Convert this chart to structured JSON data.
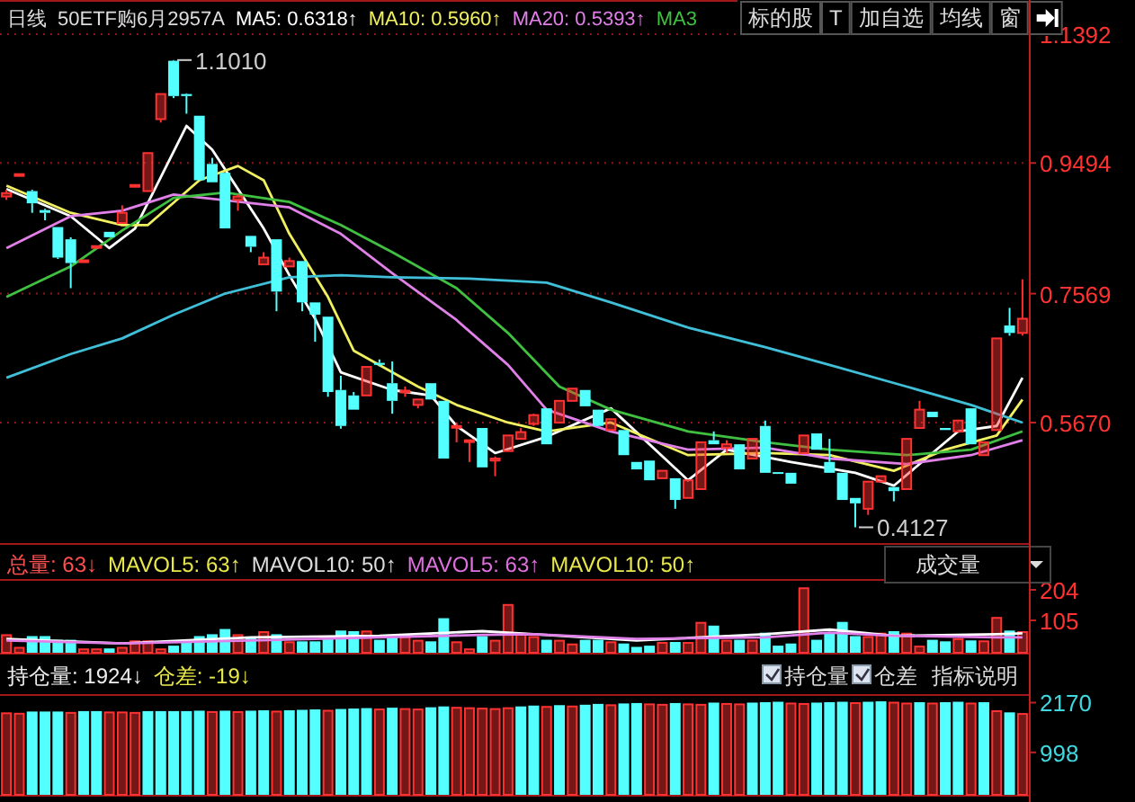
{
  "chart_data": [
    {
      "type": "candlestick",
      "tick_labels": "y",
      "grid": "y",
      "ylim": [
        0.3895,
        1.1895
      ],
      "yticks": [
        {
          "value": 0.567,
          "label": "0.5670"
        },
        {
          "value": 0.7569,
          "label": "0.7569"
        },
        {
          "value": 0.9494,
          "label": "0.9494"
        },
        {
          "value": 1.1392,
          "label": "1.1392"
        }
      ],
      "categories": [
        null,
        null,
        null,
        null,
        null,
        null,
        null,
        null,
        null,
        null,
        null,
        null,
        null,
        null,
        null,
        null,
        null,
        null,
        null,
        null,
        null,
        null,
        null,
        null,
        null,
        null,
        null,
        null,
        null,
        null,
        null,
        null,
        null,
        null,
        null,
        null,
        null,
        null,
        null,
        null,
        null,
        null,
        null,
        null,
        null,
        null,
        null,
        null,
        null,
        null,
        null,
        null,
        null,
        null,
        null,
        null,
        null,
        null,
        null,
        null,
        null,
        null,
        null,
        null,
        null,
        null,
        null,
        null,
        null,
        null,
        null,
        null,
        null,
        null,
        null,
        null,
        null,
        null,
        null,
        null
      ],
      "ohlc": [
        [
          0.9,
          0.91,
          0.895,
          0.905
        ],
        [
          0.931,
          0.933,
          0.931,
          0.933
        ],
        [
          0.908,
          0.91,
          0.876,
          0.89
        ],
        [
          0.88,
          0.882,
          0.865,
          0.876
        ],
        [
          0.855,
          0.855,
          0.808,
          0.81
        ],
        [
          0.837,
          0.84,
          0.765,
          0.802
        ],
        [
          0.804,
          0.806,
          0.804,
          0.806
        ],
        [
          0.825,
          0.827,
          0.825,
          0.827
        ],
        [
          0.848,
          0.848,
          0.84,
          0.84
        ],
        [
          0.861,
          0.887,
          0.86,
          0.876
        ],
        [
          0.915,
          0.917,
          0.915,
          0.917
        ],
        [
          0.908,
          0.964,
          0.908,
          0.964
        ],
        [
          1.014,
          1.051,
          1.009,
          1.051
        ],
        [
          1.1,
          1.101,
          1.045,
          1.048
        ],
        [
          1.051,
          1.052,
          1.022,
          1.048
        ],
        [
          1.019,
          1.019,
          0.924,
          0.924
        ],
        [
          0.948,
          0.957,
          0.921,
          0.921
        ],
        [
          0.935,
          0.935,
          0.853,
          0.853
        ],
        [
          0.895,
          0.903,
          0.879,
          0.9
        ],
        [
          0.842,
          0.842,
          0.818,
          0.826
        ],
        [
          0.8,
          0.818,
          0.8,
          0.81
        ],
        [
          0.837,
          0.837,
          0.731,
          0.76
        ],
        [
          0.797,
          0.81,
          0.797,
          0.805
        ],
        [
          0.805,
          0.805,
          0.731,
          0.744
        ],
        [
          0.744,
          0.744,
          0.686,
          0.726
        ],
        [
          0.723,
          0.723,
          0.605,
          0.612
        ],
        [
          0.615,
          0.636,
          0.558,
          0.562
        ],
        [
          0.607,
          0.612,
          0.586,
          0.586
        ],
        [
          0.607,
          0.649,
          0.607,
          0.649
        ],
        [
          0.655,
          0.66,
          0.65,
          0.652
        ],
        [
          0.625,
          0.657,
          0.58,
          0.599
        ],
        [
          0.613,
          0.62,
          0.605,
          0.614
        ],
        [
          0.593,
          0.601,
          0.588,
          0.601
        ],
        [
          0.625,
          0.625,
          0.601,
          0.601
        ],
        [
          0.599,
          0.599,
          0.514,
          0.514
        ],
        [
          0.561,
          0.567,
          0.538,
          0.562
        ],
        [
          0.54,
          0.541,
          0.509,
          0.541
        ],
        [
          0.559,
          0.559,
          0.501,
          0.501
        ],
        [
          0.511,
          0.517,
          0.488,
          0.514
        ],
        [
          0.525,
          0.548,
          0.525,
          0.548
        ],
        [
          0.543,
          0.559,
          0.543,
          0.553
        ],
        [
          0.565,
          0.58,
          0.562,
          0.578
        ],
        [
          0.588,
          0.588,
          0.535,
          0.535
        ],
        [
          0.567,
          0.599,
          0.567,
          0.599
        ],
        [
          0.599,
          0.617,
          0.599,
          0.617
        ],
        [
          0.615,
          0.615,
          0.591,
          0.591
        ],
        [
          0.586,
          0.586,
          0.562,
          0.562
        ],
        [
          0.556,
          0.572,
          0.556,
          0.572
        ],
        [
          0.556,
          0.556,
          0.519,
          0.519
        ],
        [
          0.509,
          0.509,
          0.498,
          0.498
        ],
        [
          0.511,
          0.511,
          0.482,
          0.482
        ],
        [
          0.485,
          0.496,
          0.485,
          0.496
        ],
        [
          0.485,
          0.485,
          0.44,
          0.453
        ],
        [
          0.456,
          0.482,
          0.456,
          0.482
        ],
        [
          0.469,
          0.538,
          0.469,
          0.538
        ],
        [
          0.541,
          0.554,
          0.535,
          0.535
        ],
        [
          0.53,
          0.541,
          0.522,
          0.535
        ],
        [
          0.535,
          0.535,
          0.498,
          0.498
        ],
        [
          0.514,
          0.543,
          0.514,
          0.543
        ],
        [
          0.562,
          0.57,
          0.493,
          0.493
        ],
        [
          0.494,
          0.494,
          0.493,
          0.493
        ],
        [
          0.493,
          0.493,
          0.477,
          0.477
        ],
        [
          0.522,
          0.548,
          0.522,
          0.548
        ],
        [
          0.551,
          0.551,
          0.527,
          0.527
        ],
        [
          0.509,
          0.543,
          0.493,
          0.493
        ],
        [
          0.493,
          0.493,
          0.453,
          0.453
        ],
        [
          0.456,
          0.456,
          0.4127,
          0.448
        ],
        [
          0.44,
          0.48,
          0.431,
          0.48
        ],
        [
          0.48,
          0.488,
          0.48,
          0.488
        ],
        [
          0.472,
          0.472,
          0.451,
          0.466
        ],
        [
          0.469,
          0.543,
          0.469,
          0.543
        ],
        [
          0.559,
          0.599,
          0.559,
          0.586
        ],
        [
          0.583,
          0.583,
          0.575,
          0.575
        ],
        [
          0.559,
          0.559,
          0.556,
          0.556
        ],
        [
          0.554,
          0.57,
          0.554,
          0.57
        ],
        [
          0.588,
          0.588,
          0.535,
          0.535
        ],
        [
          0.519,
          0.538,
          0.519,
          0.538
        ],
        [
          0.556,
          0.691,
          0.556,
          0.691
        ],
        [
          0.71,
          0.736,
          0.695,
          0.699
        ],
        [
          0.699,
          0.778,
          0.695,
          0.72
        ]
      ],
      "colors": [
        "#ff3232",
        "#ff3232",
        "#54ffff",
        "#54ffff",
        "#54ffff",
        "#54ffff",
        "#ff3232",
        "#ff3232",
        "#54ffff",
        "#ff3232",
        "#ff3232",
        "#ff3232",
        "#ff3232",
        "#54ffff",
        "#54ffff",
        "#54ffff",
        "#54ffff",
        "#54ffff",
        "#ff3232",
        "#54ffff",
        "#ff3232",
        "#54ffff",
        "#ff3232",
        "#54ffff",
        "#54ffff",
        "#54ffff",
        "#54ffff",
        "#54ffff",
        "#ff3232",
        "#54ffff",
        "#54ffff",
        "#ff3232",
        "#ff3232",
        "#54ffff",
        "#54ffff",
        "#ff3232",
        "#ff3232",
        "#54ffff",
        "#ff3232",
        "#ff3232",
        "#ff3232",
        "#ff3232",
        "#54ffff",
        "#ff3232",
        "#ff3232",
        "#54ffff",
        "#54ffff",
        "#ff3232",
        "#54ffff",
        "#54ffff",
        "#54ffff",
        "#ff3232",
        "#54ffff",
        "#ff3232",
        "#ff3232",
        "#54ffff",
        "#ff3232",
        "#54ffff",
        "#ff3232",
        "#54ffff",
        "#54ffff",
        "#54ffff",
        "#ff3232",
        "#54ffff",
        "#54ffff",
        "#54ffff",
        "#54ffff",
        "#ff3232",
        "#ff3232",
        "#54ffff",
        "#ff3232",
        "#ff3232",
        "#54ffff",
        "#54ffff",
        "#ff3232",
        "#54ffff",
        "#ff3232",
        "#ff3232",
        "#54ffff",
        "#ff3232"
      ],
      "series": [
        {
          "type": "line",
          "name": "MA5: 0.6318↑",
          "color": "#ffffff",
          "values": [
            0.911,
            null,
            null,
            null,
            null,
            0.871,
            null,
            null,
            0.824,
            null,
            0.853,
            null,
            null,
            null,
            1.004,
            null,
            0.969,
            null,
            null,
            null,
            0.853,
            null,
            0.784,
            null,
            0.72,
            null,
            0.641,
            null,
            null,
            null,
            0.615,
            null,
            null,
            0.607,
            null,
            0.562,
            null,
            null,
            0.522,
            null,
            null,
            null,
            0.546,
            null,
            null,
            null,
            null,
            0.588,
            null,
            null,
            null,
            null,
            null,
            0.482,
            null,
            null,
            0.527,
            null,
            null,
            null,
            null,
            0.509,
            null,
            null,
            null,
            null,
            0.493,
            null,
            null,
            0.474,
            null,
            null,
            null,
            null,
            0.554,
            null,
            null,
            0.562,
            null,
            0.633
          ]
        },
        {
          "type": "line",
          "name": "MA10: 0.5960↑",
          "color": "#f0f060",
          "values": [
            0.916,
            null,
            null,
            null,
            null,
            0.876,
            null,
            null,
            null,
            0.858,
            null,
            0.858,
            null,
            null,
            null,
            0.924,
            null,
            null,
            0.945,
            null,
            0.924,
            null,
            0.845,
            null,
            null,
            0.752,
            null,
            0.673,
            null,
            null,
            null,
            null,
            0.62,
            null,
            null,
            0.593,
            null,
            null,
            null,
            0.567,
            null,
            null,
            0.554,
            null,
            null,
            null,
            null,
            0.567,
            null,
            null,
            null,
            null,
            null,
            0.519,
            null,
            null,
            null,
            null,
            null,
            0.522,
            null,
            null,
            null,
            null,
            0.519,
            null,
            null,
            null,
            null,
            0.496,
            null,
            null,
            null,
            0.527,
            null,
            null,
            null,
            0.548,
            null,
            0.601
          ]
        },
        {
          "type": "line",
          "name": "MA20: 0.5393↑",
          "color": "#e080e8",
          "values": [
            0.824,
            null,
            null,
            null,
            null,
            0.871,
            null,
            null,
            null,
            0.879,
            null,
            null,
            null,
            0.903,
            null,
            null,
            null,
            null,
            null,
            null,
            null,
            null,
            0.884,
            null,
            null,
            null,
            0.845,
            null,
            null,
            null,
            0.787,
            null,
            null,
            null,
            null,
            0.718,
            null,
            null,
            null,
            0.652,
            null,
            null,
            0.586,
            null,
            null,
            null,
            null,
            0.554,
            null,
            null,
            null,
            null,
            null,
            0.527,
            null,
            null,
            null,
            null,
            null,
            0.53,
            null,
            null,
            null,
            null,
            0.514,
            null,
            null,
            null,
            null,
            null,
            0.506,
            null,
            null,
            null,
            null,
            0.519,
            null,
            null,
            null,
            0.541
          ]
        },
        {
          "type": "line",
          "name": "MA3",
          "color": "#40c040",
          "values": [
            0.752,
            null,
            null,
            null,
            null,
            0.797,
            null,
            null,
            null,
            0.85,
            null,
            null,
            null,
            0.898,
            null,
            null,
            null,
            0.906,
            null,
            null,
            null,
            null,
            0.892,
            null,
            null,
            null,
            0.858,
            null,
            null,
            null,
            0.818,
            null,
            null,
            null,
            null,
            0.765,
            null,
            null,
            null,
            0.699,
            null,
            null,
            null,
            0.62,
            null,
            null,
            null,
            0.586,
            null,
            null,
            null,
            null,
            null,
            0.554,
            null,
            null,
            null,
            null,
            null,
            0.538,
            null,
            null,
            null,
            null,
            0.527,
            null,
            null,
            null,
            null,
            null,
            0.519,
            null,
            null,
            null,
            null,
            0.527,
            null,
            null,
            null,
            0.554
          ]
        },
        {
          "type": "line",
          "color": "#40c0d8",
          "values": [
            0.633,
            null,
            null,
            null,
            null,
            0.668,
            null,
            null,
            null,
            0.691,
            null,
            null,
            null,
            0.726,
            null,
            null,
            null,
            0.757,
            null,
            null,
            null,
            null,
            0.781,
            null,
            null,
            null,
            0.784,
            null,
            null,
            null,
            0.781,
            null,
            null,
            null,
            null,
            null,
            0.779,
            null,
            null,
            null,
            null,
            null,
            0.773,
            null,
            null,
            null,
            null,
            0.744,
            null,
            null,
            null,
            null,
            null,
            0.707,
            null,
            null,
            null,
            null,
            null,
            0.678,
            null,
            null,
            null,
            null,
            0.652,
            null,
            null,
            null,
            null,
            null,
            0.62,
            null,
            null,
            null,
            null,
            0.593,
            null,
            null,
            null,
            0.567
          ]
        }
      ],
      "annotations": [
        "日线",
        "50ETF购6月2957A",
        "标的股",
        "T",
        "加自选",
        "均线",
        "窗",
        "1.1010",
        "0.4127"
      ]
    },
    {
      "type": "bar",
      "tick_labels": "y",
      "ylim": [
        0,
        239
      ],
      "yticks": [
        105,
        204
      ],
      "categories": [
        null,
        null,
        null,
        null,
        null,
        null,
        null,
        null,
        null,
        null,
        null,
        null,
        null,
        null,
        null,
        null,
        null,
        null,
        null,
        null,
        null,
        null,
        null,
        null,
        null,
        null,
        null,
        null,
        null,
        null,
        null,
        null,
        null,
        null,
        null,
        null,
        null,
        null,
        null,
        null,
        null,
        null,
        null,
        null,
        null,
        null,
        null,
        null,
        null,
        null,
        null,
        null,
        null,
        null,
        null,
        null,
        null,
        null,
        null,
        null,
        null,
        null,
        null,
        null,
        null,
        null,
        null,
        null,
        null,
        null,
        null,
        null,
        null,
        null,
        null,
        null,
        null,
        null,
        null,
        null
      ],
      "values": [
        60,
        19,
        54,
        54,
        42,
        42,
        14,
        14,
        14,
        19,
        40,
        40,
        14,
        23,
        37,
        54,
        60,
        77,
        60,
        47,
        70,
        60,
        37,
        37,
        37,
        54,
        72,
        70,
        72,
        42,
        54,
        54,
        42,
        37,
        112,
        37,
        14,
        54,
        42,
        158,
        65,
        54,
        42,
        42,
        30,
        42,
        42,
        37,
        30,
        19,
        23,
        35,
        35,
        35,
        100,
        88,
        42,
        42,
        42,
        65,
        23,
        30,
        212,
        42,
        65,
        100,
        54,
        54,
        65,
        70,
        65,
        23,
        42,
        37,
        47,
        40,
        40,
        116,
        72,
        70
      ],
      "colors": [
        "#ff3232",
        "#ff3232",
        "#54ffff",
        "#54ffff",
        "#54ffff",
        "#54ffff",
        "#ff3232",
        "#ff3232",
        "#54ffff",
        "#ff3232",
        "#ff3232",
        "#ff3232",
        "#ff3232",
        "#54ffff",
        "#54ffff",
        "#54ffff",
        "#54ffff",
        "#54ffff",
        "#ff3232",
        "#54ffff",
        "#ff3232",
        "#54ffff",
        "#ff3232",
        "#54ffff",
        "#54ffff",
        "#54ffff",
        "#54ffff",
        "#54ffff",
        "#ff3232",
        "#54ffff",
        "#54ffff",
        "#ff3232",
        "#ff3232",
        "#54ffff",
        "#54ffff",
        "#ff3232",
        "#ff3232",
        "#54ffff",
        "#ff3232",
        "#ff3232",
        "#ff3232",
        "#ff3232",
        "#54ffff",
        "#ff3232",
        "#ff3232",
        "#54ffff",
        "#54ffff",
        "#ff3232",
        "#54ffff",
        "#54ffff",
        "#54ffff",
        "#ff3232",
        "#54ffff",
        "#ff3232",
        "#ff3232",
        "#54ffff",
        "#ff3232",
        "#54ffff",
        "#ff3232",
        "#54ffff",
        "#54ffff",
        "#54ffff",
        "#ff3232",
        "#54ffff",
        "#54ffff",
        "#54ffff",
        "#54ffff",
        "#ff3232",
        "#ff3232",
        "#54ffff",
        "#ff3232",
        "#ff3232",
        "#54ffff",
        "#54ffff",
        "#ff3232",
        "#54ffff",
        "#ff3232",
        "#ff3232",
        "#54ffff",
        "#ff3232"
      ],
      "series": [
        {
          "type": "line",
          "color": "#ffffff",
          "values": [
            45,
            null,
            null,
            null,
            null,
            null,
            null,
            null,
            null,
            30,
            null,
            null,
            null,
            null,
            null,
            null,
            null,
            null,
            null,
            50,
            null,
            null,
            null,
            null,
            null,
            null,
            null,
            null,
            null,
            55,
            null,
            null,
            null,
            null,
            null,
            null,
            null,
            70,
            null,
            null,
            null,
            60,
            null,
            null,
            null,
            null,
            null,
            null,
            null,
            40,
            null,
            null,
            null,
            null,
            null,
            null,
            null,
            null,
            null,
            60,
            null,
            null,
            null,
            null,
            75,
            null,
            null,
            null,
            null,
            55,
            null,
            null,
            null,
            null,
            null,
            null,
            null,
            60,
            null,
            63
          ]
        },
        {
          "type": "line",
          "color": "#e080e8",
          "values": [
            40,
            null,
            null,
            null,
            null,
            null,
            null,
            null,
            null,
            30,
            null,
            null,
            null,
            null,
            null,
            null,
            null,
            null,
            null,
            40,
            null,
            null,
            null,
            null,
            null,
            null,
            null,
            null,
            null,
            50,
            null,
            null,
            null,
            null,
            null,
            null,
            null,
            58,
            null,
            null,
            null,
            60,
            null,
            null,
            null,
            null,
            null,
            null,
            null,
            45,
            null,
            null,
            null,
            null,
            null,
            null,
            null,
            null,
            null,
            50,
            null,
            null,
            null,
            null,
            65,
            null,
            null,
            null,
            null,
            55,
            null,
            null,
            null,
            null,
            null,
            null,
            null,
            50,
            null,
            50
          ]
        }
      ],
      "annotations": [
        "总量: 63↓",
        "MAVOL5: 63↑",
        "MAVOL10: 50↑",
        "MAVOL5: 63↑",
        "MAVOL10: 50↑",
        "成交量"
      ]
    },
    {
      "type": "bar",
      "tick_labels": "y",
      "ylim": [
        0,
        2370
      ],
      "yticks": [
        998,
        2170
      ],
      "categories": [
        null,
        null,
        null,
        null,
        null,
        null,
        null,
        null,
        null,
        null,
        null,
        null,
        null,
        null,
        null,
        null,
        null,
        null,
        null,
        null,
        null,
        null,
        null,
        null,
        null,
        null,
        null,
        null,
        null,
        null,
        null,
        null,
        null,
        null,
        null,
        null,
        null,
        null,
        null,
        null,
        null,
        null,
        null,
        null,
        null,
        null,
        null,
        null,
        null,
        null,
        null,
        null,
        null,
        null,
        null,
        null,
        null,
        null,
        null,
        null,
        null,
        null,
        null,
        null,
        null,
        null,
        null,
        null,
        null,
        null,
        null,
        null,
        null,
        null,
        null,
        null,
        null,
        null,
        null,
        null
      ],
      "values": [
        1940,
        1930,
        1960,
        1960,
        1960,
        1950,
        1970,
        1970,
        1960,
        1960,
        1950,
        1970,
        1970,
        1970,
        1970,
        1980,
        1970,
        1980,
        1970,
        1980,
        1990,
        1980,
        1990,
        2000,
        2010,
        2000,
        2020,
        2030,
        2040,
        2030,
        2050,
        2040,
        2030,
        2060,
        2080,
        2070,
        2060,
        2050,
        2040,
        2060,
        2080,
        2100,
        2090,
        2110,
        2100,
        2120,
        2140,
        2130,
        2150,
        2160,
        2150,
        2140,
        2160,
        2150,
        2140,
        2170,
        2160,
        2150,
        2170,
        2180,
        2190,
        2170,
        2160,
        2170,
        2180,
        2190,
        2180,
        2190,
        2200,
        2190,
        2170,
        2180,
        2170,
        2180,
        2190,
        2170,
        2180,
        1990,
        1940,
        1924
      ],
      "colors": [
        "#ff3232",
        "#ff3232",
        "#54ffff",
        "#54ffff",
        "#54ffff",
        "#ff3232",
        "#54ffff",
        "#54ffff",
        "#ff3232",
        "#ff3232",
        "#ff3232",
        "#54ffff",
        "#54ffff",
        "#54ffff",
        "#54ffff",
        "#54ffff",
        "#ff3232",
        "#54ffff",
        "#ff3232",
        "#54ffff",
        "#54ffff",
        "#ff3232",
        "#54ffff",
        "#54ffff",
        "#54ffff",
        "#ff3232",
        "#54ffff",
        "#54ffff",
        "#54ffff",
        "#ff3232",
        "#54ffff",
        "#ff3232",
        "#ff3232",
        "#54ffff",
        "#54ffff",
        "#ff3232",
        "#ff3232",
        "#ff3232",
        "#ff3232",
        "#ff3232",
        "#54ffff",
        "#54ffff",
        "#ff3232",
        "#54ffff",
        "#ff3232",
        "#54ffff",
        "#54ffff",
        "#ff3232",
        "#54ffff",
        "#54ffff",
        "#ff3232",
        "#ff3232",
        "#54ffff",
        "#ff3232",
        "#ff3232",
        "#54ffff",
        "#ff3232",
        "#ff3232",
        "#54ffff",
        "#54ffff",
        "#54ffff",
        "#ff3232",
        "#ff3232",
        "#54ffff",
        "#54ffff",
        "#54ffff",
        "#ff3232",
        "#54ffff",
        "#54ffff",
        "#ff3232",
        "#ff3232",
        "#54ffff",
        "#ff3232",
        "#54ffff",
        "#54ffff",
        "#ff3232",
        "#54ffff",
        "#ff3232",
        "#54ffff",
        "#ff3232"
      ],
      "annotations": [
        "持仓量: 1924↓",
        "仓差: -19↓",
        "持仓量",
        "仓差",
        "指标说明"
      ]
    }
  ]
}
